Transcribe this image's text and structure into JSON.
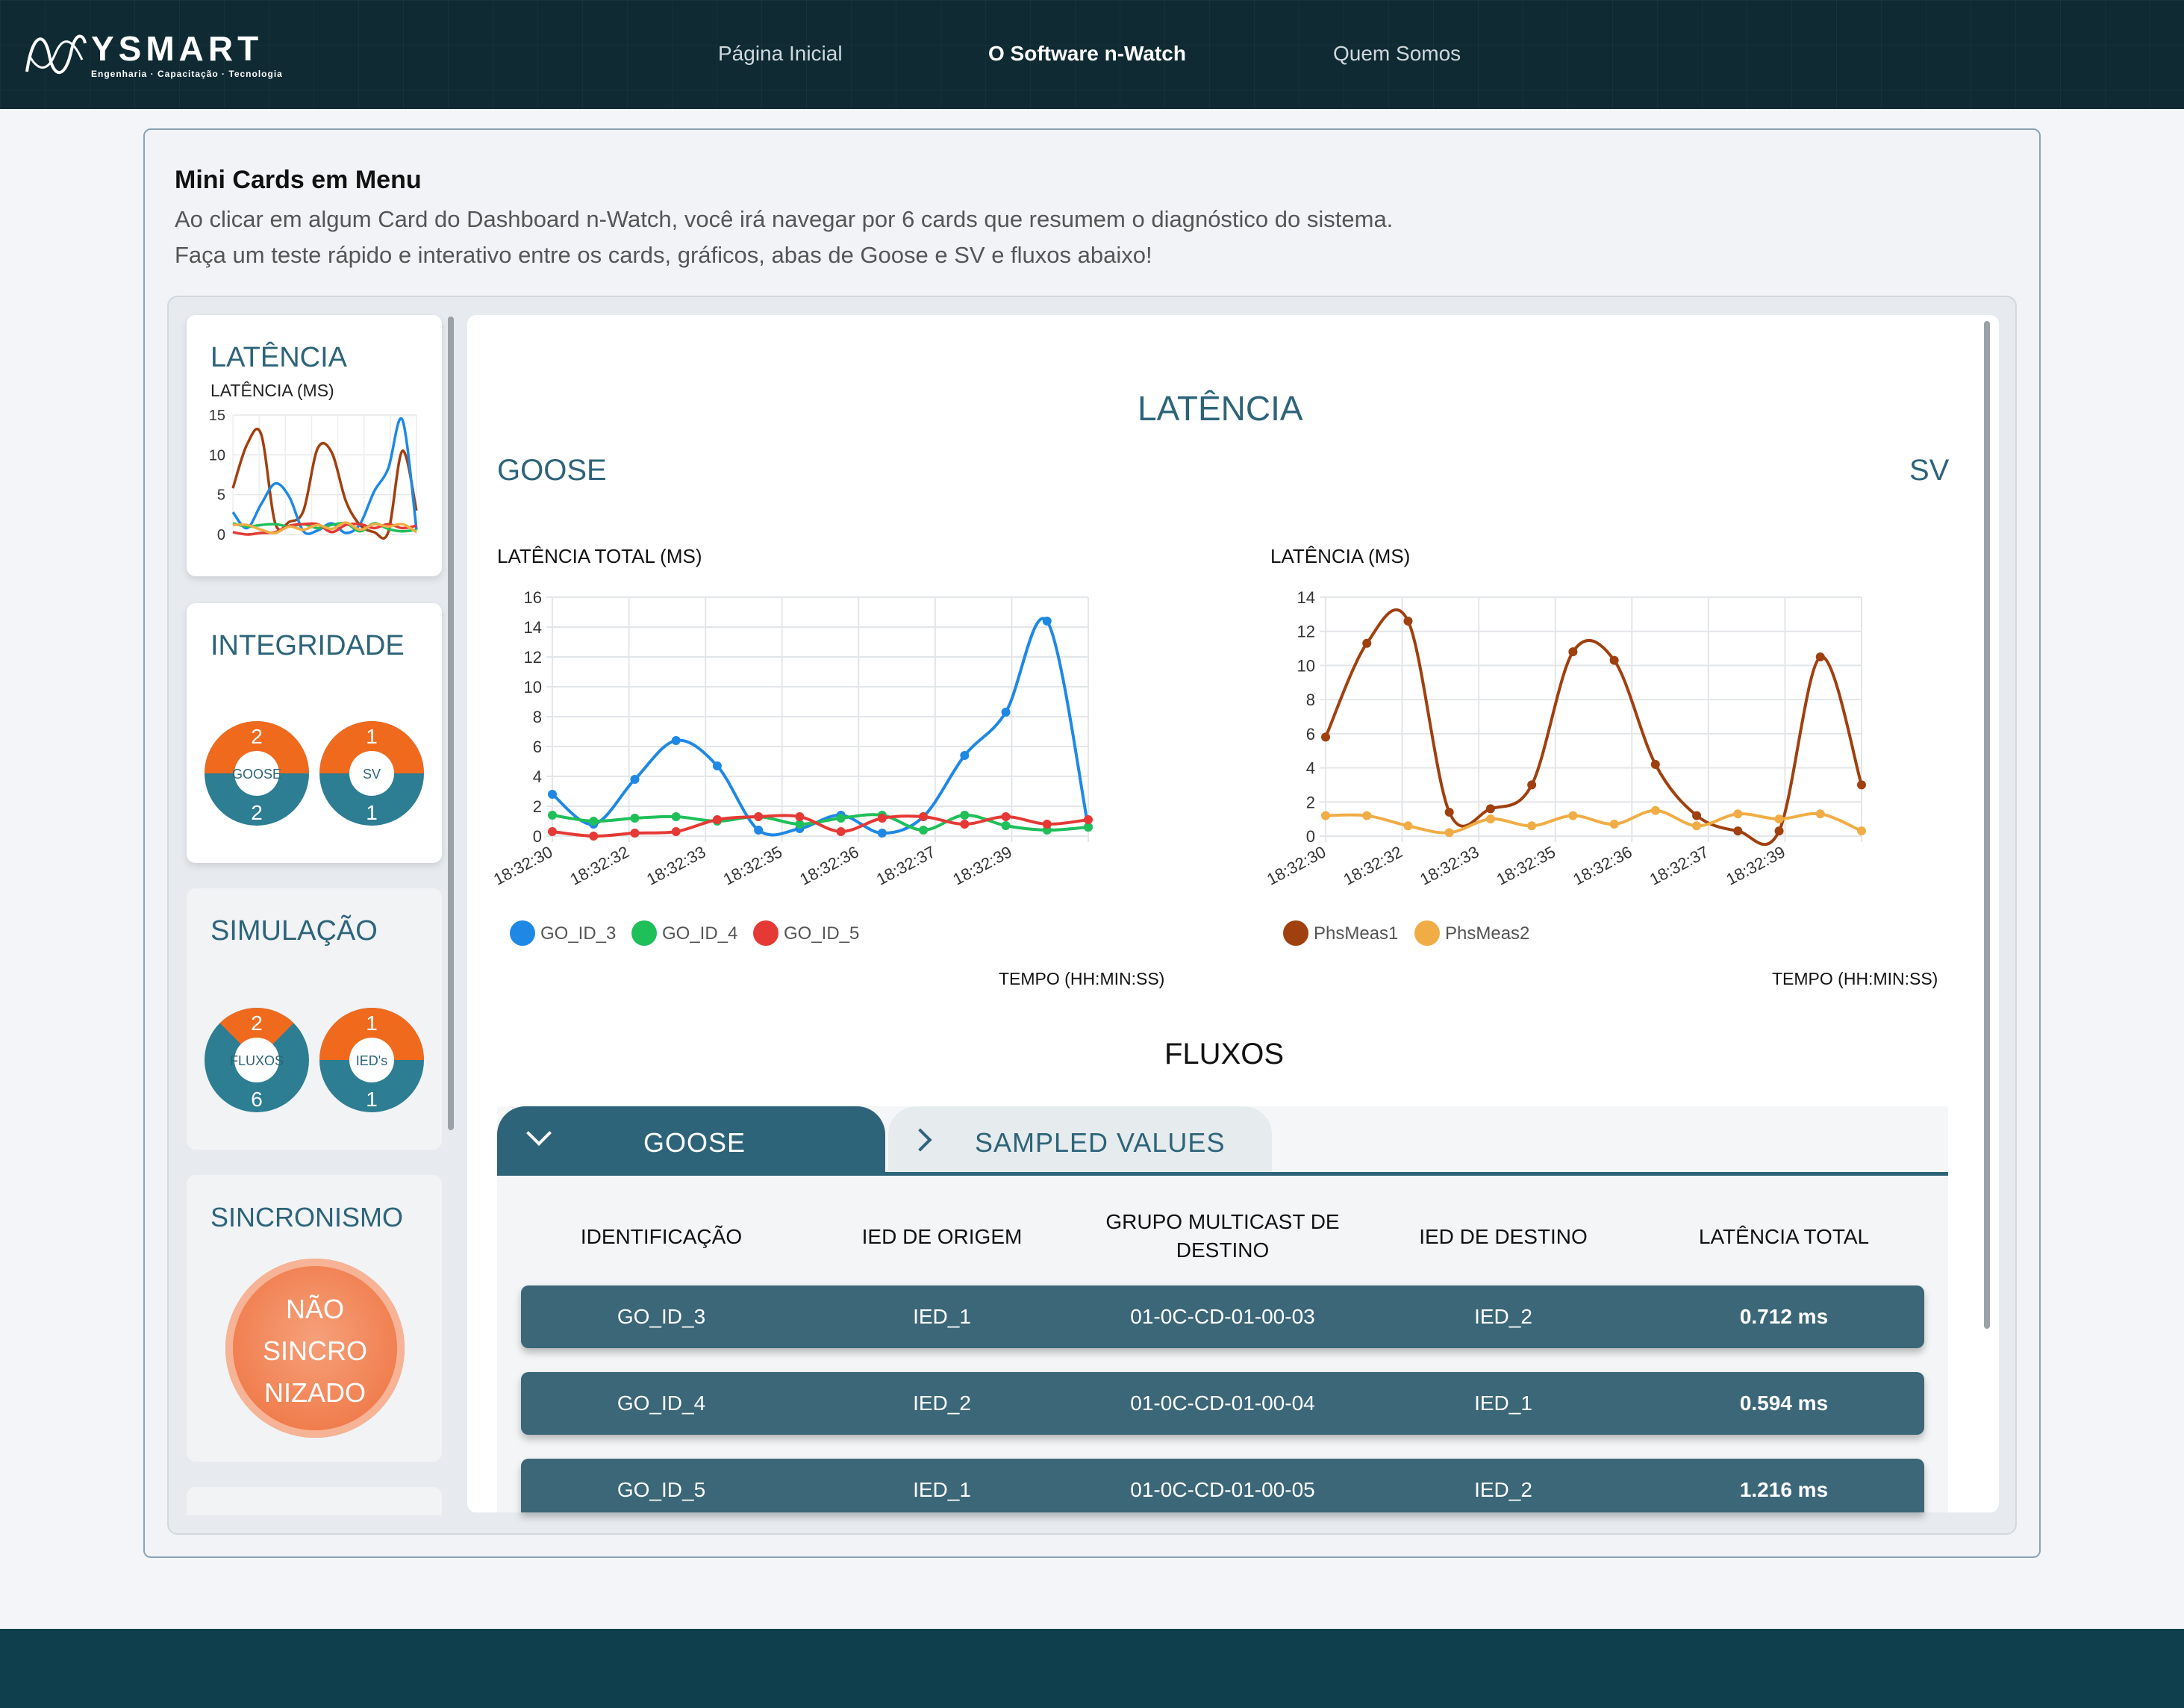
{
  "brand": {
    "name": "YSMART",
    "tagline": "Engenharia · Capacitação · Tecnologia"
  },
  "nav": [
    "Página Inicial",
    "O Software n-Watch",
    "Quem Somos"
  ],
  "intro": {
    "title": "Mini Cards em Menu",
    "line1": "Ao clicar em algum Card do Dashboard n-Watch, você irá navegar por 6 cards que resumem o diagnóstico do sistema.",
    "line2": "Faça um teste rápido e interativo entre os cards, gráficos, abas de Goose e SV e fluxos abaixo!"
  },
  "mini_cards": {
    "latencia": {
      "title": "LATÊNCIA",
      "subtitle": "LATÊNCIA (MS)",
      "yticks": [
        "15",
        "10",
        "5",
        "0"
      ]
    },
    "integridade": {
      "title": "INTEGRIDADE",
      "goose": {
        "label": "GOOSE",
        "top": "2",
        "bottom": "2",
        "fraction": 0.5
      },
      "sv": {
        "label": "SV",
        "top": "1",
        "bottom": "1",
        "fraction": 0.5
      }
    },
    "simulacao": {
      "title": "SIMULAÇÃO",
      "fluxos": {
        "label": "FLUXOS",
        "top": "2",
        "bottom": "6",
        "fraction": 0.25
      },
      "ieds": {
        "label": "IED's",
        "top": "1",
        "bottom": "1",
        "fraction": 0.5
      }
    },
    "sincronismo": {
      "title": "SINCRONISMO",
      "status": [
        "NÃO",
        "SINCRO",
        "NIZADO"
      ]
    }
  },
  "panel": {
    "title": "LATÊNCIA",
    "left_label": "GOOSE",
    "right_label": "SV"
  },
  "chart_data": [
    {
      "type": "line",
      "ylabel": "LATÊNCIA TOTAL (MS)",
      "xlabel": "TEMPO (HH:MIN:SS)",
      "ylim": [
        0,
        16
      ],
      "yticks": [
        0,
        2,
        4,
        6,
        8,
        10,
        12,
        14,
        16
      ],
      "xtick_labels": [
        "18:32:30",
        "18:32:32",
        "18:32:33",
        "18:32:35",
        "18:32:36",
        "18:32:37",
        "18:32:39"
      ],
      "legend": "bottom-left",
      "series": [
        {
          "name": "GO_ID_3",
          "color": "#1e88e5",
          "values": [
            2.8,
            0.8,
            3.8,
            6.4,
            4.7,
            0.4,
            0.5,
            1.4,
            0.2,
            1.3,
            5.4,
            8.3,
            14.4,
            0.6
          ]
        },
        {
          "name": "GO_ID_4",
          "color": "#1fbf5a",
          "values": [
            1.4,
            1.0,
            1.2,
            1.3,
            1.0,
            1.3,
            0.8,
            1.2,
            1.4,
            0.4,
            1.4,
            0.7,
            0.4,
            0.6
          ]
        },
        {
          "name": "GO_ID_5",
          "color": "#e53935",
          "values": [
            0.3,
            0.0,
            0.2,
            0.3,
            1.1,
            1.3,
            1.3,
            0.3,
            1.2,
            1.3,
            0.8,
            1.3,
            0.8,
            1.1
          ]
        }
      ]
    },
    {
      "type": "line",
      "ylabel": "LATÊNCIA (MS)",
      "xlabel": "TEMPO (HH:MIN:SS)",
      "ylim": [
        0,
        14
      ],
      "yticks": [
        0,
        2,
        4,
        6,
        8,
        10,
        12,
        14
      ],
      "xtick_labels": [
        "18:32:30",
        "18:32:32",
        "18:32:33",
        "18:32:35",
        "18:32:36",
        "18:32:37",
        "18:32:39"
      ],
      "legend": "bottom-left",
      "series": [
        {
          "name": "PhsMeas1",
          "color": "#a0400f",
          "values": [
            5.8,
            11.3,
            12.6,
            1.4,
            1.6,
            3.0,
            10.8,
            10.3,
            4.2,
            1.2,
            0.3,
            0.3,
            10.5,
            3.0
          ]
        },
        {
          "name": "PhsMeas2",
          "color": "#f0ad45",
          "values": [
            1.2,
            1.2,
            0.6,
            0.2,
            1.0,
            0.6,
            1.2,
            0.7,
            1.5,
            0.6,
            1.3,
            1.0,
            1.3,
            0.3
          ]
        }
      ]
    }
  ],
  "fluxos": {
    "title": "FLUXOS",
    "tabs": [
      "GOOSE",
      "SAMPLED VALUES"
    ],
    "headers": [
      "IDENTIFICAÇÃO",
      "IED DE ORIGEM",
      "GRUPO MULTICAST DE DESTINO",
      "IED DE DESTINO",
      "LATÊNCIA TOTAL"
    ],
    "rows": [
      [
        "GO_ID_3",
        "IED_1",
        "01-0C-CD-01-00-03",
        "IED_2",
        "0.712 ms"
      ],
      [
        "GO_ID_4",
        "IED_2",
        "01-0C-CD-01-00-04",
        "IED_1",
        "0.594 ms"
      ],
      [
        "GO_ID_5",
        "IED_1",
        "01-0C-CD-01-00-05",
        "IED_2",
        "1.216 ms"
      ]
    ]
  },
  "colors": {
    "accent": "#2d6479",
    "donut_orange": "#f06a1e",
    "donut_teal": "#2d7d93",
    "sync_orange": "#f4865a"
  }
}
